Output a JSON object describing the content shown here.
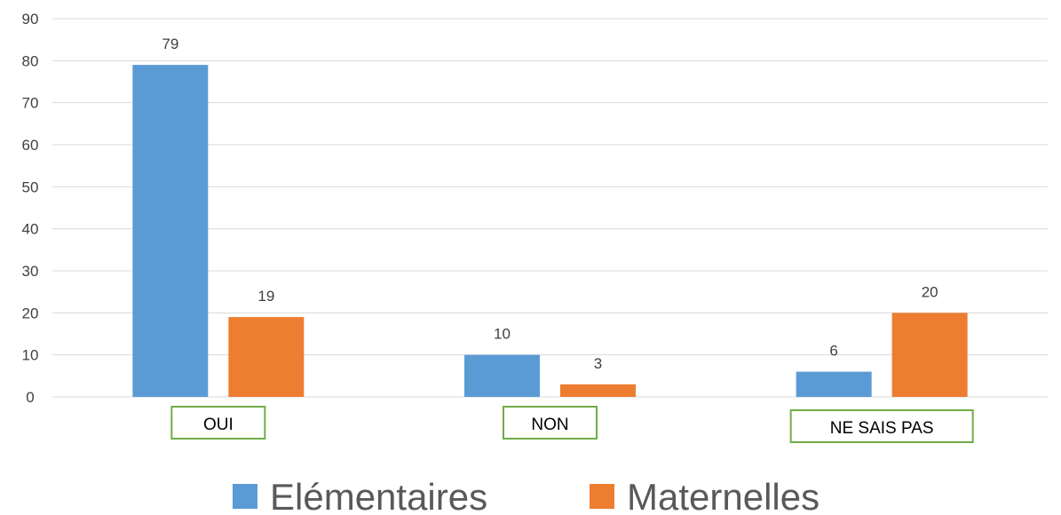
{
  "chart_data": {
    "type": "bar",
    "categories": [
      "OUI",
      "NON",
      "NE SAIS PAS"
    ],
    "series": [
      {
        "name": "Elémentaires",
        "values": [
          79,
          10,
          6
        ],
        "color": "#5B9BD5"
      },
      {
        "name": "Maternelles",
        "values": [
          19,
          3,
          20
        ],
        "color": "#ED7D31"
      }
    ],
    "ylim": [
      0,
      90
    ],
    "yticks": [
      0,
      10,
      20,
      30,
      40,
      50,
      60,
      70,
      80,
      90
    ],
    "grid": true,
    "legend_position": "bottom",
    "category_box_color": "#70AD47",
    "gridline_color": "#D9D9D9"
  }
}
